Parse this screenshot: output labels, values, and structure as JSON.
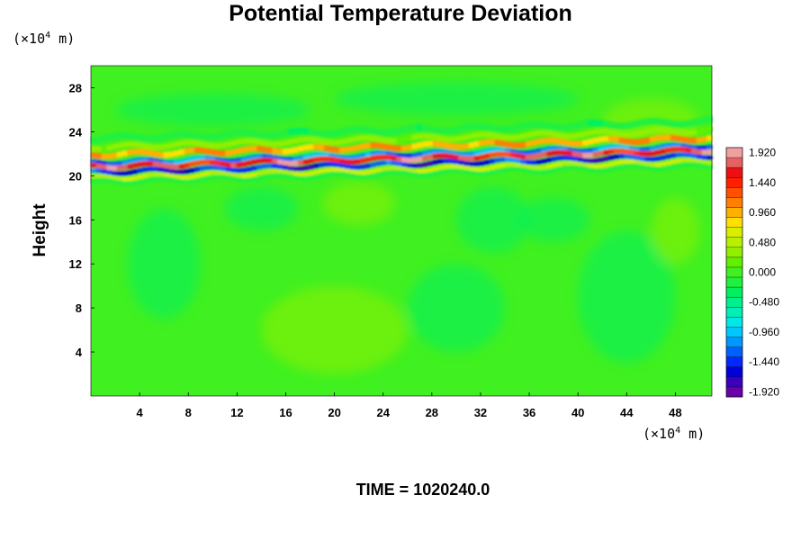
{
  "chart_data": {
    "type": "heatmap",
    "title": "Potential Temperature Deviation",
    "ylabel": "Height",
    "x_unit_prefix": "(×10",
    "x_unit_exp": "4",
    "x_unit_suffix": " m)",
    "y_unit_prefix": "(×10",
    "y_unit_exp": "4",
    "y_unit_suffix": " m)",
    "xlim": [
      0,
      51
    ],
    "ylim": [
      0,
      30
    ],
    "x_ticks": [
      4,
      8,
      12,
      16,
      20,
      24,
      28,
      32,
      36,
      40,
      44,
      48
    ],
    "y_ticks": [
      4,
      8,
      12,
      16,
      20,
      24,
      28
    ],
    "colorbar": {
      "range": [
        -2.0,
        2.0
      ],
      "tick_values": [
        1.92,
        1.44,
        0.96,
        0.48,
        0.0,
        -0.48,
        -0.96,
        -1.44,
        -1.92
      ],
      "tick_labels": [
        "1.920",
        "1.440",
        "0.960",
        "0.480",
        "0.000",
        "-0.480",
        "-0.960",
        "-1.440",
        "-1.920"
      ],
      "levels": 25,
      "colors_low_to_high": [
        "#6a00a8",
        "#3a00c0",
        "#0000d8",
        "#0028ff",
        "#0060ff",
        "#0098ff",
        "#00c8ff",
        "#00e8e8",
        "#00f0b8",
        "#00f090",
        "#00f060",
        "#20f040",
        "#40f020",
        "#60f000",
        "#90f000",
        "#b8f000",
        "#d8f000",
        "#ffe000",
        "#ffb000",
        "#ff8000",
        "#ff5000",
        "#ff2000",
        "#ee1010",
        "#e86060",
        "#f0a0a0"
      ]
    },
    "annotation": "TIME = 1020240.0",
    "features": [
      {
        "type": "background",
        "value": 0.0
      },
      {
        "type": "band",
        "y": 21.0,
        "x_from": 0,
        "x_to": 51,
        "note": "strong positive/negative alternating layer near height 20–22"
      },
      {
        "type": "band",
        "y": 20.2,
        "x_from": 0,
        "x_to": 51,
        "value_sign": "negative"
      },
      {
        "type": "band",
        "y": 21.8,
        "x_from": 0,
        "x_to": 51,
        "value_sign": "positive"
      }
    ]
  }
}
